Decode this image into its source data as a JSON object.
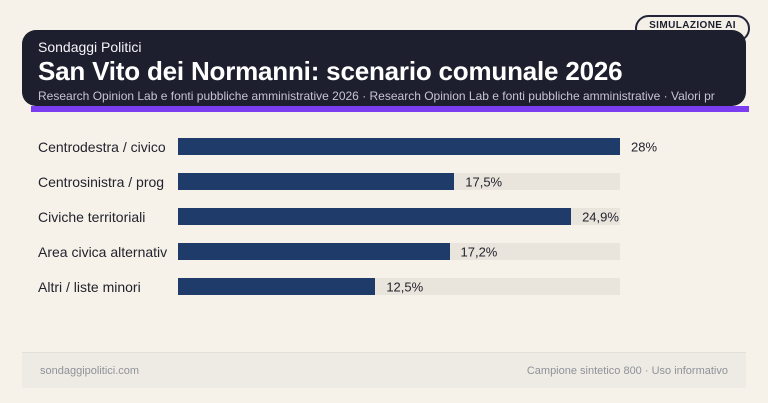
{
  "badge": {
    "label": "SIMULAZIONE AI"
  },
  "header": {
    "kicker": "Sondaggi Politici",
    "title": "San Vito dei Normanni: scenario comunale 2026",
    "subtitle": "Research Opinion Lab e fonti pubbliche amministrative 2026 · Research Opinion Lab e fonti pubbliche amministrative · Valori pr",
    "background": "#1d1e2e",
    "accent_color": "#7c3df0"
  },
  "chart_data": {
    "type": "bar",
    "orientation": "horizontal",
    "title": "San Vito dei Normanni: scenario comunale 2026",
    "categories": [
      "Centrodestra / civico",
      "Centrosinistra / prog",
      "Civiche territoriali",
      "Area civica alternativ",
      "Altri / liste minori"
    ],
    "values": [
      28,
      17.5,
      24.9,
      17.2,
      12.5
    ],
    "value_labels": [
      "28%",
      "17,5%",
      "24,9%",
      "17,2%",
      "12,5%"
    ],
    "xlim": [
      0,
      28
    ],
    "grid": false,
    "legend": false,
    "bar_color": "#1f3b6a",
    "track_color": "#e9e4dc"
  },
  "footer": {
    "left": "sondaggipolitici.com",
    "right": "Campione sintetico 800 · Uso informativo"
  }
}
